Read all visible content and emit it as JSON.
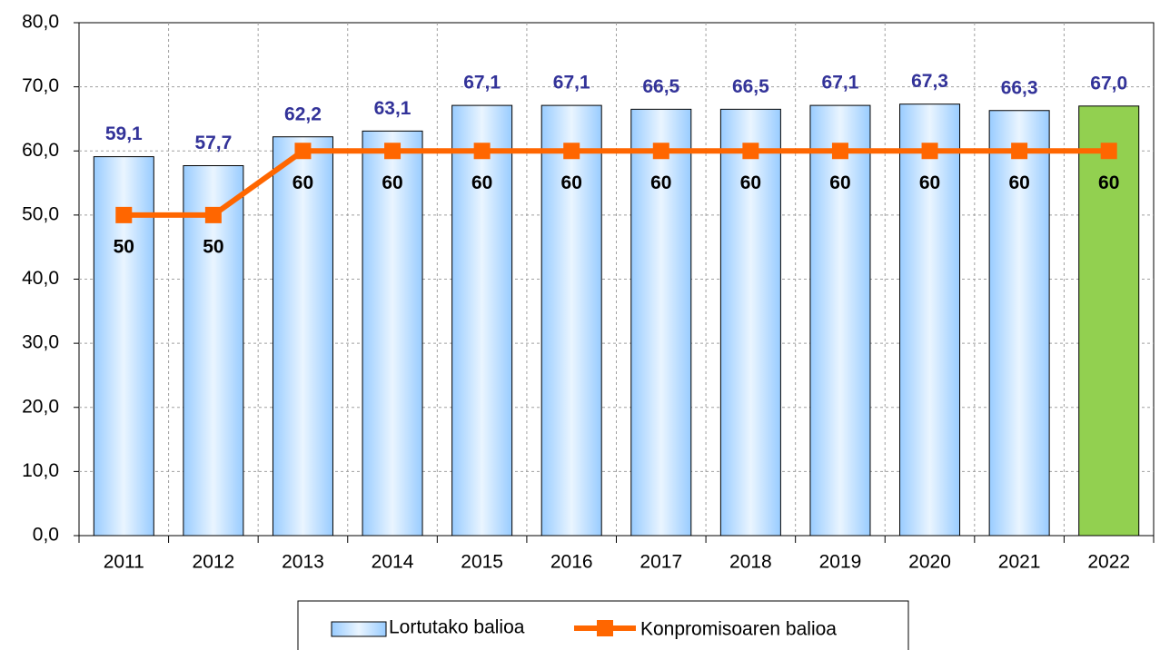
{
  "chart_data": {
    "type": "combo",
    "categories": [
      "2011",
      "2012",
      "2013",
      "2014",
      "2015",
      "2016",
      "2017",
      "2018",
      "2019",
      "2020",
      "2021",
      "2022"
    ],
    "series": [
      {
        "name": "Lortutako balioa",
        "type": "bar",
        "color": "#99ccff",
        "colors": [
          "#99ccff",
          "#99ccff",
          "#99ccff",
          "#99ccff",
          "#99ccff",
          "#99ccff",
          "#99ccff",
          "#99ccff",
          "#99ccff",
          "#99ccff",
          "#99ccff",
          "#92d050"
        ],
        "values": [
          59.1,
          57.7,
          62.2,
          63.1,
          67.1,
          67.1,
          66.5,
          66.5,
          67.1,
          67.3,
          66.3,
          67.0
        ],
        "value_labels": [
          "59,1",
          "57,7",
          "62,2",
          "63,1",
          "67,1",
          "67,1",
          "66,5",
          "66,5",
          "67,1",
          "67,3",
          "66,3",
          "67,0"
        ]
      },
      {
        "name": "Konpromisoaren balioa",
        "type": "line",
        "color": "#ff6600",
        "values": [
          50,
          50,
          60,
          60,
          60,
          60,
          60,
          60,
          60,
          60,
          60,
          60
        ]
      }
    ],
    "ylim": [
      0,
      80
    ],
    "yticks": [
      {
        "value": 0,
        "label": "0,0"
      },
      {
        "value": 10,
        "label": "10,0"
      },
      {
        "value": 20,
        "label": "20,0"
      },
      {
        "value": 30,
        "label": "30,0"
      },
      {
        "value": 40,
        "label": "40,0"
      },
      {
        "value": 50,
        "label": "50,0"
      },
      {
        "value": 60,
        "label": "60,0"
      },
      {
        "value": 70,
        "label": "70,0"
      },
      {
        "value": 80,
        "label": "80,0"
      }
    ],
    "grid": true,
    "legend": "bottom"
  }
}
